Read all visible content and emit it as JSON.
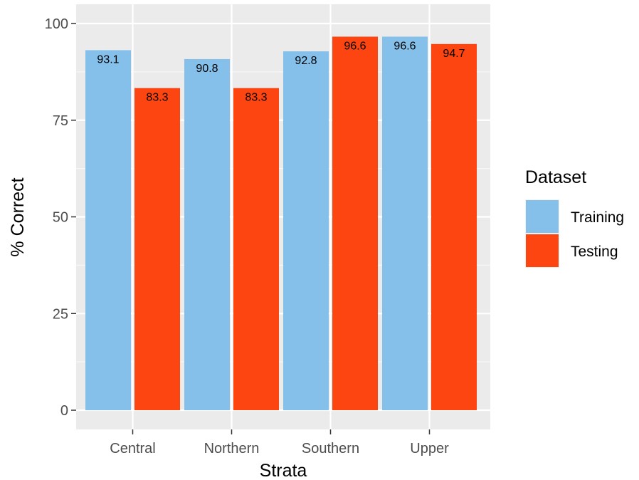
{
  "chart_data": {
    "type": "bar",
    "categories": [
      "Central",
      "Northern",
      "Southern",
      "Upper"
    ],
    "series": [
      {
        "name": "Training",
        "values": [
          93.1,
          90.8,
          92.8,
          96.6
        ],
        "color": "#85C0EA"
      },
      {
        "name": "Testing",
        "values": [
          83.3,
          83.3,
          96.6,
          94.7
        ],
        "color": "#FC4510"
      }
    ],
    "data_labels": {
      "Training": [
        "93.1",
        "90.8",
        "92.8",
        "96.6"
      ],
      "Testing": [
        "83.3",
        "83.3",
        "96.6",
        "94.7"
      ]
    },
    "xlabel": "Strata",
    "ylabel": "% Correct",
    "ylim": [
      0,
      100
    ],
    "yticks": [
      0,
      25,
      50,
      75,
      100
    ],
    "ytick_labels": [
      "0",
      "25",
      "50",
      "75",
      "100"
    ],
    "grid": true,
    "panel_background": "#EBEBEB",
    "legend": {
      "title": "Dataset",
      "position": "right",
      "entries": [
        "Training",
        "Testing"
      ]
    }
  }
}
